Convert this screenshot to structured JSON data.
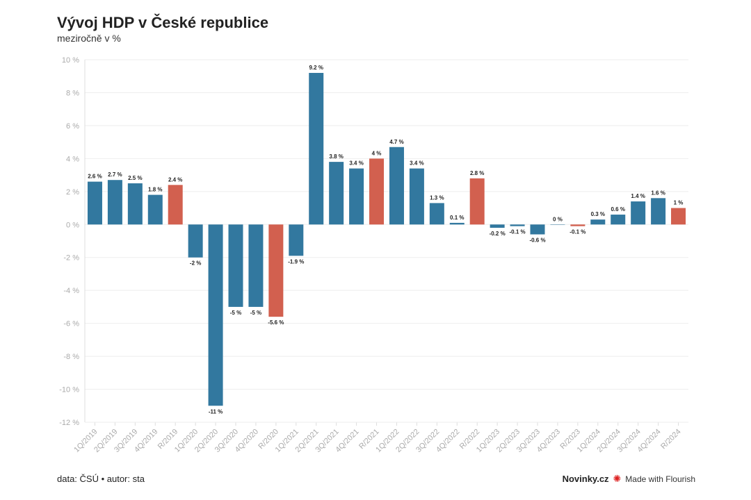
{
  "title": "Vývoj HDP v České republice",
  "subtitle": "meziročně v %",
  "footer": {
    "source": "data: ČSÚ • autor: sta",
    "brand": "Novinky.cz",
    "flourish": "Made with Flourish"
  },
  "colors": {
    "quarter": "#32789f",
    "year": "#d2604f"
  },
  "chart_data": {
    "type": "bar",
    "title": "Vývoj HDP v České republice",
    "ylabel": "meziročně v %",
    "ylim": [
      -12,
      10
    ],
    "yticks": [
      10,
      8,
      6,
      4,
      2,
      0,
      -2,
      -4,
      -6,
      -8,
      -10,
      -12
    ],
    "grid": true,
    "categories": [
      "1Q/2019",
      "2Q/2019",
      "3Q/2019",
      "4Q/2019",
      "R/2019",
      "1Q/2020",
      "2Q/2020",
      "3Q/2020",
      "4Q/2020",
      "R/2020",
      "1Q/2021",
      "2Q/2021",
      "3Q/2021",
      "4Q/2021",
      "R/2021",
      "1Q/2022",
      "2Q/2022",
      "3Q/2022",
      "4Q/2022",
      "R/2022",
      "1Q/2023",
      "2Q/2023",
      "3Q/2023",
      "4Q/2023",
      "R/2023",
      "1Q/2024",
      "2Q/2024",
      "3Q/2024",
      "4Q/2024",
      "R/2024"
    ],
    "values": [
      2.6,
      2.7,
      2.5,
      1.8,
      2.4,
      -2,
      -11,
      -5,
      -5,
      -5.6,
      -1.9,
      9.2,
      3.8,
      3.4,
      4,
      4.7,
      3.4,
      1.3,
      0.1,
      2.8,
      -0.2,
      -0.1,
      -0.6,
      0,
      -0.1,
      0.3,
      0.6,
      1.4,
      1.6,
      1
    ]
  }
}
